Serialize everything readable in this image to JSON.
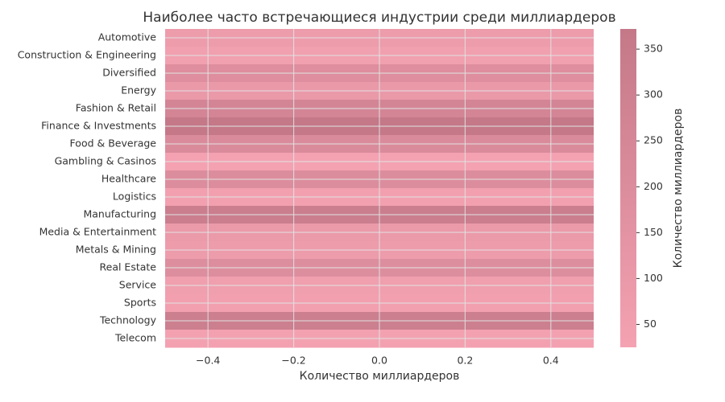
{
  "chart_data": {
    "type": "heatmap",
    "title": "Наиболее часто встречающиеся индустрии среди миллиардеров",
    "x_label": "Количество миллиардеров",
    "colorbar_label": "Количество миллиардеров",
    "categories": [
      "Automotive",
      "Construction & Engineering",
      "Diversified",
      "Energy",
      "Fashion & Retail",
      "Finance & Investments",
      "Food & Beverage",
      "Gambling & Casinos",
      "Healthcare",
      "Logistics",
      "Manufacturing",
      "Media & Entertainment",
      "Metals & Mining",
      "Real Estate",
      "Service",
      "Sports",
      "Technology",
      "Telecom"
    ],
    "values": [
      73,
      45,
      187,
      100,
      266,
      372,
      212,
      25,
      201,
      40,
      324,
      91,
      74,
      193,
      53,
      39,
      314,
      31
    ],
    "xlim": [
      -0.5,
      0.5
    ],
    "xticks": [
      {
        "value": -0.4,
        "label": "−0.4"
      },
      {
        "value": -0.2,
        "label": "−0.2"
      },
      {
        "value": 0,
        "label": "0.0"
      },
      0.2,
      0.4
    ],
    "clim": [
      25,
      372
    ],
    "cticks": [
      50,
      100,
      150,
      200,
      250,
      300,
      350
    ],
    "colormap": [
      "#f4a2b2",
      "#c47888"
    ],
    "grid": true
  }
}
